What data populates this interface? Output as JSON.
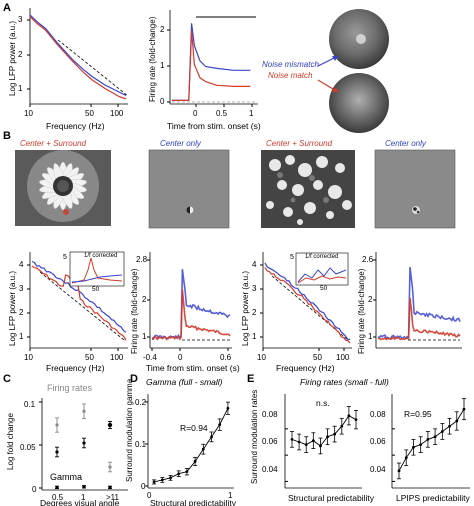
{
  "panels": {
    "A": {
      "letter": "A",
      "lfp_ylabel": "Log LFP power (a.u.)",
      "lfp_xlabel": "Frequency (Hz)",
      "lfp_yticks": [
        "3",
        "2",
        "1"
      ],
      "lfp_xticks": [
        "10",
        "50",
        "100"
      ],
      "fr_ylabel": "Firing rate (fold-change)",
      "fr_xlabel": "Time from stim. onset (s)",
      "fr_yticks": [
        "2",
        "1",
        "0"
      ],
      "fr_xticks": [
        "0",
        "0.5",
        "1"
      ],
      "legend_mismatch": "Noise mismatch",
      "legend_match": "Noise match"
    },
    "B": {
      "letter": "B",
      "title1": "Center + Surround",
      "title2": "Center only",
      "title3": "Center + Surround",
      "title4": "Center only",
      "lfp_ylabel": "Log LFP power (a.u.)",
      "lfp_xlabel": "Frequency (Hz)",
      "lfp_yticks": [
        "4",
        "3",
        "2",
        "1"
      ],
      "lfp_xticks": [
        "10",
        "50",
        "100"
      ],
      "inset_label": "1/f corrected",
      "inset_ytick": "5",
      "inset_xtick": "50",
      "fr_ylabel": "Firing rate (fold-change)",
      "fr_xlabel": "Time from stim. onset (s)",
      "fr1_yticks": [
        "2.8",
        "2",
        "1"
      ],
      "fr1_xticks": [
        "-0.4",
        "0",
        "0.6"
      ],
      "lfp2_yticks": [
        "4",
        "3",
        "2",
        "1"
      ],
      "lfp2_xticks": [
        "10",
        "50",
        "100"
      ],
      "fr2_yticks": [
        "2.6",
        "2",
        "1"
      ]
    },
    "C": {
      "letter": "C",
      "ylabel": "Log fold change",
      "xlabel": "Degrees visual angle",
      "yticks": [
        "0.1",
        "0.05",
        "0"
      ],
      "xticks": [
        "0.5",
        "1",
        ">11"
      ],
      "firing_label": "Firing rates",
      "gamma_label": "Gamma"
    },
    "D": {
      "letter": "D",
      "title": "Gamma (full - small)",
      "ylabel": "Surround modulation gamma",
      "xlabel": "Structural predictability",
      "yticks": [
        "0.2",
        "0.1",
        "0"
      ],
      "xticks": [
        "0",
        "1"
      ],
      "r_text": "R=0.94"
    },
    "E": {
      "letter": "E",
      "title": "Firing rates (small - full)",
      "ylabel": "Surround modulation rates",
      "xlabel1": "Structural predictability",
      "xlabel2": "LPIPS predictability",
      "yticks": [
        "0.08",
        "0.06",
        "0.04"
      ],
      "ns_text": "n.s.",
      "r_text": "R=0.95"
    }
  },
  "colors": {
    "red": "#d23a2a",
    "blue": "#3a44d0",
    "gray": "#777777"
  },
  "chart_data": [
    {
      "type": "line",
      "panel": "A-left",
      "xlabel": "Frequency (Hz)",
      "ylabel": "Log LFP power (a.u.)",
      "xlim": [
        10,
        120
      ],
      "ylim": [
        0.8,
        3.6
      ],
      "xscale": "log",
      "series": [
        {
          "x": [
            10,
            12,
            15,
            20,
            30,
            40,
            50,
            70,
            100,
            120
          ],
          "y": [
            3.4,
            3.2,
            3.0,
            2.6,
            2.1,
            1.8,
            1.6,
            1.35,
            1.15,
            1.05
          ]
        },
        {
          "x": [
            10,
            12,
            15,
            20,
            30,
            40,
            50,
            70,
            100,
            120
          ],
          "y": [
            3.35,
            3.15,
            2.95,
            2.55,
            2.05,
            1.72,
            1.5,
            1.25,
            1.02,
            0.95
          ]
        }
      ]
    },
    {
      "type": "line",
      "panel": "A-right",
      "xlabel": "Time from stim. onset (s)",
      "ylabel": "Firing rate (fold-change)",
      "xlim": [
        -0.3,
        1.2
      ],
      "ylim": [
        -0.1,
        2.4
      ],
      "series": [
        {
          "name": "Noise mismatch",
          "x": [
            -0.3,
            0,
            0.05,
            0.1,
            0.2,
            0.3,
            0.5,
            0.8,
            1.1
          ],
          "y": [
            0.05,
            0.05,
            2.1,
            1.5,
            1.1,
            0.95,
            0.9,
            0.85,
            0.85
          ]
        },
        {
          "name": "Noise match",
          "x": [
            -0.3,
            0,
            0.05,
            0.1,
            0.2,
            0.3,
            0.5,
            0.8,
            1.1
          ],
          "y": [
            0.05,
            0.05,
            1.9,
            1.0,
            0.65,
            0.55,
            0.45,
            0.42,
            0.42
          ]
        }
      ]
    },
    {
      "type": "scatter",
      "panel": "C",
      "xlabel": "Degrees visual angle",
      "ylabel": "Log fold change",
      "categories": [
        "0.5",
        "1",
        ">11"
      ],
      "ylim": [
        0,
        0.15
      ],
      "series": [
        {
          "name": "Firing rates",
          "values": [
            0.105,
            0.128,
            0.035
          ],
          "err": [
            0.012,
            0.012,
            0.008
          ]
        },
        {
          "values": [
            0.06,
            0.075,
            0.105
          ],
          "err": [
            0.008,
            0.008,
            0.006
          ]
        },
        {
          "name": "Gamma",
          "values": [
            0.001,
            0.002,
            0.001
          ],
          "err": [
            0.002,
            0.002,
            0.002
          ]
        }
      ]
    },
    {
      "type": "line",
      "panel": "D",
      "title": "Gamma (full - small)",
      "xlabel": "Structural predictability",
      "ylabel": "Surround modulation gamma",
      "xlim": [
        0,
        1
      ],
      "ylim": [
        0,
        0.22
      ],
      "x": [
        0.05,
        0.15,
        0.25,
        0.35,
        0.45,
        0.55,
        0.65,
        0.75,
        0.85,
        0.95
      ],
      "values": [
        0.01,
        0.015,
        0.02,
        0.03,
        0.035,
        0.06,
        0.09,
        0.12,
        0.15,
        0.19
      ],
      "err": [
        0.005,
        0.006,
        0.006,
        0.007,
        0.008,
        0.01,
        0.012,
        0.012,
        0.014,
        0.015
      ]
    },
    {
      "type": "line",
      "panel": "E-left",
      "title": "Firing rates (small - full)",
      "xlabel": "Structural predictability",
      "ylabel": "Surround modulation rates",
      "ylim": [
        0.035,
        0.105
      ],
      "x": [
        1,
        2,
        3,
        4,
        5,
        6,
        7,
        8,
        9,
        10
      ],
      "values": [
        0.072,
        0.07,
        0.068,
        0.071,
        0.067,
        0.074,
        0.076,
        0.082,
        0.09,
        0.087
      ],
      "err": [
        0.006,
        0.006,
        0.006,
        0.006,
        0.006,
        0.006,
        0.006,
        0.006,
        0.007,
        0.007
      ]
    },
    {
      "type": "line",
      "panel": "E-right",
      "xlabel": "LPIPS predictability",
      "ylim": [
        0.035,
        0.105
      ],
      "x": [
        1,
        2,
        3,
        4,
        5,
        6,
        7,
        8,
        9,
        10
      ],
      "values": [
        0.048,
        0.058,
        0.066,
        0.068,
        0.072,
        0.074,
        0.078,
        0.082,
        0.086,
        0.095
      ],
      "err": [
        0.006,
        0.006,
        0.006,
        0.006,
        0.006,
        0.006,
        0.006,
        0.006,
        0.007,
        0.008
      ]
    }
  ]
}
